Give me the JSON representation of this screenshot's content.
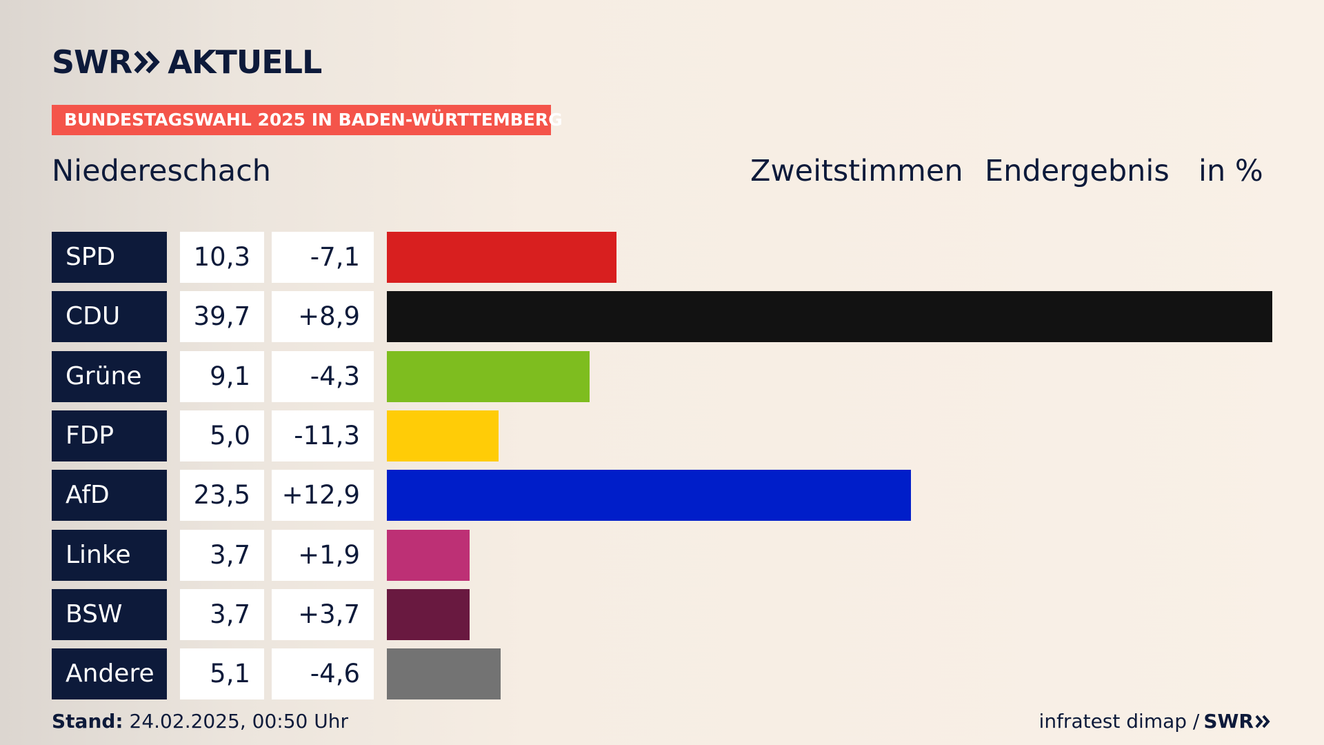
{
  "brand": {
    "logo_left": "SWR",
    "logo_right": "AKTUELL",
    "logo_icon": "double-chevron-right-icon",
    "color": "#0d1a3a"
  },
  "banner": {
    "text": "BUNDESTAGSWAHL 2025 IN BADEN-WÜRTTEMBERG",
    "color": "#f4544a"
  },
  "location": "Niedereschach",
  "header": {
    "vote_type": "Zweitstimmen",
    "status": "Endergebnis",
    "unit": "in %"
  },
  "footer": {
    "stand_label": "Stand:",
    "stand_value": "24.02.2025, 00:50 Uhr",
    "source": "infratest dimap /",
    "source_logo": "SWR"
  },
  "chart_data": {
    "type": "bar",
    "orientation": "horizontal",
    "categories": [
      "SPD",
      "CDU",
      "Grüne",
      "FDP",
      "AfD",
      "Linke",
      "BSW",
      "Andere"
    ],
    "values": [
      10.3,
      39.7,
      9.1,
      5.0,
      23.5,
      3.7,
      3.7,
      5.1
    ],
    "value_labels": [
      "10,3",
      "39,7",
      "9,1",
      "5,0",
      "23,5",
      "3,7",
      "3,7",
      "5,1"
    ],
    "diff_labels": [
      "-7,1",
      "+8,9",
      "-4,3",
      "-11,3",
      "+12,9",
      "+1,9",
      "+3,7",
      "-4,6"
    ],
    "colors": [
      "#d81f1f",
      "#121212",
      "#7ebd1f",
      "#ffcc07",
      "#001ec9",
      "#bd3075",
      "#691940",
      "#737373"
    ],
    "xlim": [
      0,
      39.7
    ],
    "grid": false,
    "legend": "none"
  }
}
